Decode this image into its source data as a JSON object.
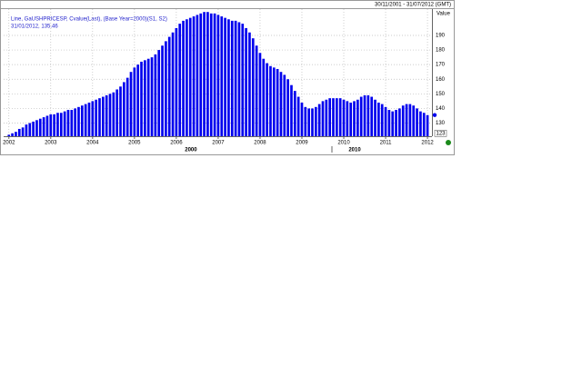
{
  "chart_data": {
    "type": "bar",
    "date_range": "30/11/2001 - 31/07/2012 (GMT)",
    "legend_line1": "Line, GaUSHPRICESP, Cvalue(Last), (Base Year=2000)(S1, S2)",
    "legend_line2": "31/01/2012, 135.46",
    "y_label": "Value",
    "decade_labels": [
      "2000",
      "2010"
    ],
    "color": "#0000ee",
    "grid": true,
    "ylim": [
      121,
      208
    ],
    "yticks": [
      123,
      130,
      140,
      150,
      160,
      170,
      180,
      190
    ],
    "categories": [
      null,
      "2002",
      null,
      null,
      null,
      null,
      null,
      null,
      null,
      null,
      null,
      null,
      null,
      "2003",
      null,
      null,
      null,
      null,
      null,
      null,
      null,
      null,
      null,
      null,
      null,
      "2004",
      null,
      null,
      null,
      null,
      null,
      null,
      null,
      null,
      null,
      null,
      null,
      "2005",
      null,
      null,
      null,
      null,
      null,
      null,
      null,
      null,
      null,
      null,
      null,
      "2006",
      null,
      null,
      null,
      null,
      null,
      null,
      null,
      null,
      null,
      null,
      null,
      "2007",
      null,
      null,
      null,
      null,
      null,
      null,
      null,
      null,
      null,
      null,
      null,
      "2008",
      null,
      null,
      null,
      null,
      null,
      null,
      null,
      null,
      null,
      null,
      null,
      "2009",
      null,
      null,
      null,
      null,
      null,
      null,
      null,
      null,
      null,
      null,
      null,
      "2010",
      null,
      null,
      null,
      null,
      null,
      null,
      null,
      null,
      null,
      null,
      null,
      "2011",
      null,
      null,
      null,
      null,
      null,
      null,
      null,
      null,
      null,
      null,
      null,
      "2012"
    ],
    "values": [
      121,
      122,
      123,
      124,
      126,
      127,
      129,
      130,
      131,
      132,
      133,
      134,
      135,
      136,
      136,
      137,
      137,
      138,
      139,
      139,
      140,
      141,
      142,
      143,
      144,
      145,
      146,
      147,
      148,
      149,
      150,
      151,
      153,
      155,
      158,
      161,
      165,
      168,
      170,
      172,
      173,
      174,
      175,
      177,
      180,
      183,
      186,
      189,
      192,
      195,
      198,
      200,
      201,
      202,
      203,
      204,
      205,
      206,
      206,
      205,
      205,
      204,
      203,
      202,
      201,
      200,
      200,
      199,
      198,
      195,
      192,
      188,
      183,
      178,
      174,
      171,
      169,
      168,
      167,
      165,
      163,
      160,
      156,
      152,
      148,
      144,
      141,
      140,
      140,
      141,
      143,
      145,
      146,
      147,
      147,
      147,
      147,
      146,
      145,
      144,
      145,
      146,
      148,
      149,
      149,
      148,
      146,
      144,
      143,
      141,
      139,
      138,
      139,
      140,
      142,
      143,
      143,
      142,
      140,
      138,
      137,
      135.46
    ]
  }
}
